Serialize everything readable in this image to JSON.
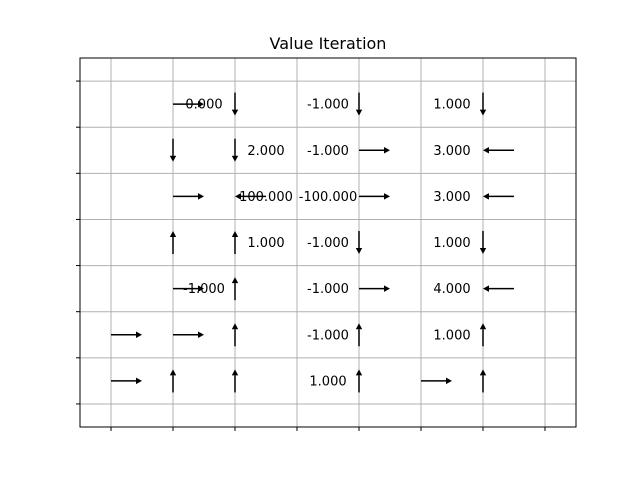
{
  "chart_data": {
    "type": "heatmap",
    "title": "Value Iteration",
    "xlabel": "",
    "ylabel": "",
    "grid": true,
    "x_ticks_labeled": false,
    "y_ticks_labeled": false,
    "values": [
      {
        "x": 0.5,
        "y": 6.5,
        "text": "0.000"
      },
      {
        "x": 2.5,
        "y": 6.5,
        "text": "-1.000"
      },
      {
        "x": 4.5,
        "y": 6.5,
        "text": "1.000"
      },
      {
        "x": 1.5,
        "y": 5.5,
        "text": "2.000"
      },
      {
        "x": 2.5,
        "y": 5.5,
        "text": "-1.000"
      },
      {
        "x": 4.5,
        "y": 5.5,
        "text": "3.000"
      },
      {
        "x": 1.5,
        "y": 4.5,
        "text": "100.000"
      },
      {
        "x": 2.5,
        "y": 4.5,
        "text": "-100.000"
      },
      {
        "x": 4.5,
        "y": 4.5,
        "text": "3.000"
      },
      {
        "x": 1.5,
        "y": 3.5,
        "text": "1.000"
      },
      {
        "x": 2.5,
        "y": 3.5,
        "text": "-1.000"
      },
      {
        "x": 4.5,
        "y": 3.5,
        "text": "1.000"
      },
      {
        "x": 0.5,
        "y": 2.5,
        "text": "-1.000"
      },
      {
        "x": 2.5,
        "y": 2.5,
        "text": "-1.000"
      },
      {
        "x": 4.5,
        "y": 2.5,
        "text": "4.000"
      },
      {
        "x": 2.5,
        "y": 1.5,
        "text": "-1.000"
      },
      {
        "x": 4.5,
        "y": 1.5,
        "text": "1.000"
      },
      {
        "x": 2.5,
        "y": 0.5,
        "text": "1.000"
      }
    ],
    "arrows": [
      {
        "x": 0,
        "y": 6.5,
        "dir": "right"
      },
      {
        "x": 1,
        "y": 6.5,
        "dir": "down"
      },
      {
        "x": 3,
        "y": 6.5,
        "dir": "down"
      },
      {
        "x": 5,
        "y": 6.5,
        "dir": "down"
      },
      {
        "x": 0,
        "y": 5.5,
        "dir": "down"
      },
      {
        "x": 1,
        "y": 5.5,
        "dir": "down"
      },
      {
        "x": 3,
        "y": 5.5,
        "dir": "right"
      },
      {
        "x": 5,
        "y": 5.5,
        "dir": "left"
      },
      {
        "x": 0,
        "y": 4.5,
        "dir": "right"
      },
      {
        "x": 1,
        "y": 4.5,
        "dir": "left"
      },
      {
        "x": 3,
        "y": 4.5,
        "dir": "right"
      },
      {
        "x": 5,
        "y": 4.5,
        "dir": "left"
      },
      {
        "x": 0,
        "y": 3.5,
        "dir": "up"
      },
      {
        "x": 1,
        "y": 3.5,
        "dir": "up"
      },
      {
        "x": 3,
        "y": 3.5,
        "dir": "down"
      },
      {
        "x": 5,
        "y": 3.5,
        "dir": "down"
      },
      {
        "x": 0,
        "y": 2.5,
        "dir": "right"
      },
      {
        "x": 1,
        "y": 2.5,
        "dir": "up"
      },
      {
        "x": 3,
        "y": 2.5,
        "dir": "right"
      },
      {
        "x": 5,
        "y": 2.5,
        "dir": "left"
      },
      {
        "x": -1,
        "y": 1.5,
        "dir": "right"
      },
      {
        "x": 0,
        "y": 1.5,
        "dir": "right"
      },
      {
        "x": 1,
        "y": 1.5,
        "dir": "up"
      },
      {
        "x": 3,
        "y": 1.5,
        "dir": "up"
      },
      {
        "x": 5,
        "y": 1.5,
        "dir": "up"
      },
      {
        "x": -1,
        "y": 0.5,
        "dir": "right"
      },
      {
        "x": 0,
        "y": 0.5,
        "dir": "up"
      },
      {
        "x": 1,
        "y": 0.5,
        "dir": "up"
      },
      {
        "x": 3,
        "y": 0.5,
        "dir": "up"
      },
      {
        "x": 4,
        "y": 0.5,
        "dir": "right"
      },
      {
        "x": 5,
        "y": 0.5,
        "dir": "up"
      }
    ],
    "xlim": [
      -1.5,
      6.5
    ],
    "ylim": [
      -0.5,
      7.5
    ],
    "xticks": [
      -1,
      0,
      1,
      2,
      3,
      4,
      5,
      6
    ],
    "yticks": [
      0,
      1,
      2,
      3,
      4,
      5,
      6,
      7
    ]
  }
}
